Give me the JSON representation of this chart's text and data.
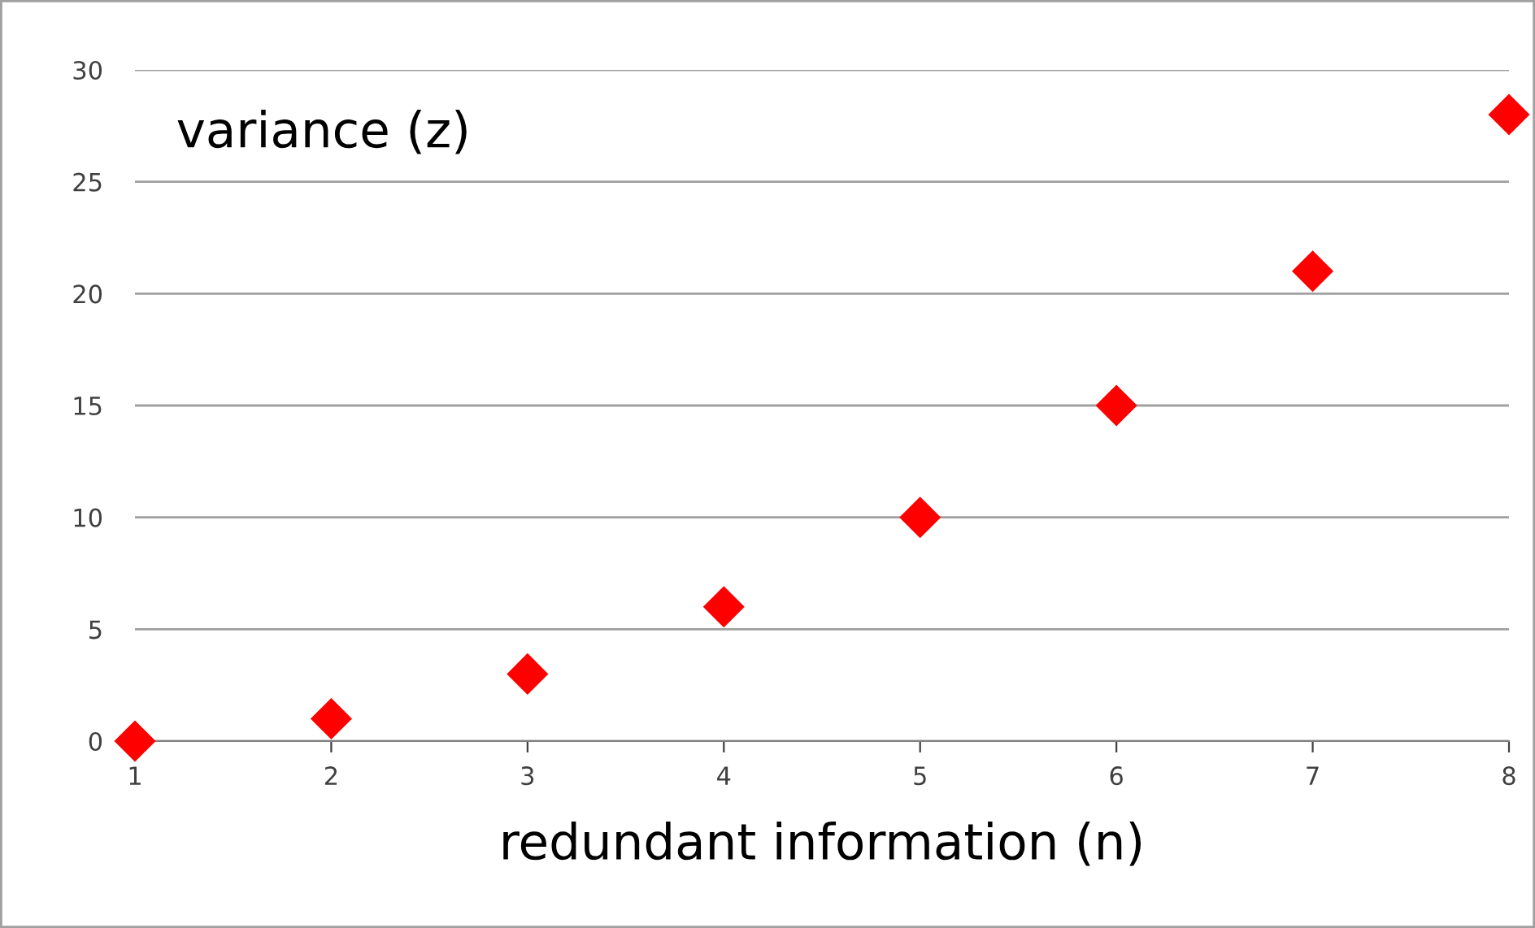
{
  "chart_data": {
    "type": "scatter",
    "xlabel": "redundant information (n)",
    "ylabel": "variance (z)",
    "x": [
      1,
      2,
      3,
      4,
      5,
      6,
      7,
      8
    ],
    "series": [
      {
        "color": "#ff0000",
        "values": [
          0,
          1,
          3,
          6,
          10,
          15,
          21,
          28
        ]
      }
    ],
    "xlim": [
      1,
      8
    ],
    "xticks": [
      1,
      2,
      3,
      4,
      5,
      6,
      7,
      8
    ],
    "ylim": [
      0,
      30
    ],
    "yticks": [
      0,
      5,
      10,
      15,
      20,
      25,
      30
    ],
    "grid": "y",
    "marker": "diamond",
    "legend": false
  }
}
